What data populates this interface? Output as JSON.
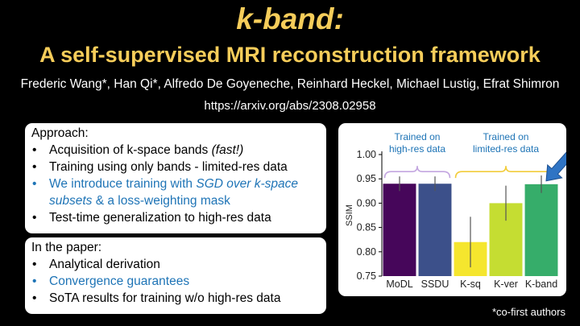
{
  "header": {
    "title": "k-band:",
    "subtitle": "A self-supervised MRI reconstruction framework",
    "authors": "Frederic Wang*, Han Qi*, Alfredo De Goyeneche, Reinhard Heckel, Michael Lustig, Efrat Shimron",
    "url": "https://arxiv.org/abs/2308.02958"
  },
  "approach": {
    "heading": "Approach:",
    "items": [
      {
        "text": "Acquisition of k-space bands ",
        "em": "(fast!)",
        "after": ""
      },
      {
        "text": "Training using only bands - limited-res data",
        "em": "",
        "after": ""
      },
      {
        "text": "We introduce training with ",
        "em": "SGD over k-space subsets",
        "after": " & a loss-weighting mask"
      },
      {
        "text": "Test-time generalization to high-res data",
        "em": "",
        "after": ""
      }
    ],
    "bullet": "•"
  },
  "paper": {
    "heading": "In the paper:",
    "items": [
      "Analytical derivation",
      "Convergence guarantees",
      "SoTA results for training w/o high-res data"
    ]
  },
  "footnote": "*co-first authors",
  "colors": {
    "title": "#f6cd5a",
    "highlight": "#1e74b6",
    "bracket_highres": "#c3a6e0",
    "bracket_limited": "#f2cc3a",
    "arrow": "#2f74c4"
  },
  "chart_data": {
    "type": "bar",
    "title": "",
    "xlabel": "",
    "ylabel": "SSIM",
    "ylim": [
      0.75,
      1.0
    ],
    "yticks": [
      "0.75",
      "0.80",
      "0.85",
      "0.90",
      "0.95",
      "1.00"
    ],
    "ytick_values": [
      0.75,
      0.8,
      0.85,
      0.9,
      0.95,
      1.0
    ],
    "categories": [
      "MoDL",
      "SSDU",
      "K-sq",
      "K-ver",
      "K-band"
    ],
    "values": [
      0.94,
      0.94,
      0.82,
      0.9,
      0.939
    ],
    "errors": [
      0.015,
      0.015,
      0.052,
      0.036,
      0.018
    ],
    "colors": [
      "#46065a",
      "#3c508a",
      "#f5e62e",
      "#c5dd32",
      "#36ad6a"
    ],
    "groups": [
      {
        "label": "Trained on high-res data",
        "line1": "Trained on",
        "line2": "high-res data",
        "from": 0,
        "to": 1
      },
      {
        "label": "Trained on limited-res data",
        "line1": "Trained on",
        "line2": "limited-res data",
        "from": 2,
        "to": 4
      }
    ],
    "arrow_target": "K-band",
    "grid": false,
    "legend": "none"
  }
}
